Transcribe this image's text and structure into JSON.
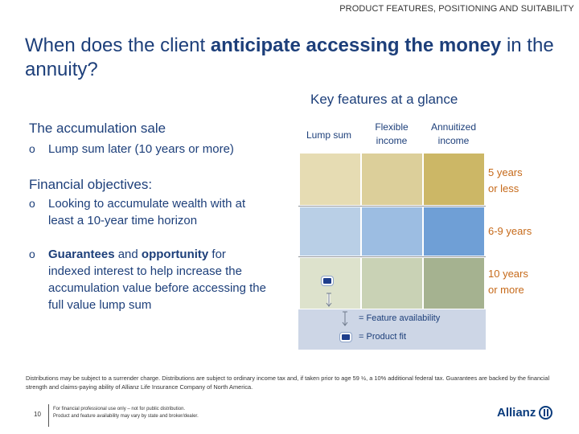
{
  "header": {
    "tag": "PRODUCT FEATURES, POSITIONING AND SUITABILITY"
  },
  "title": {
    "part1": "When does the client ",
    "bold": "anticipate accessing the money",
    "part2": " in the annuity?"
  },
  "left": {
    "section1_heading": "The accumulation sale",
    "section1_bullet": "Lump sum later (10 years or more)",
    "section2_heading": "Financial objectives:",
    "bullet2": "Looking to accumulate wealth with at least a 10-year time horizon",
    "bullet3": {
      "bold1": "Guarantees",
      "text1": " and ",
      "bold2": "opportunity",
      "text2": " for indexed interest to help increase the accumulation value before accessing the full value lump sum"
    },
    "bullet_mark": "o"
  },
  "key_features": {
    "title": "Key features at a glance",
    "columns": [
      "Lump sum",
      "Flexible income",
      "Annuitized income"
    ],
    "column_lines": [
      [
        "Lump sum"
      ],
      [
        "Flexible",
        "income"
      ],
      [
        "Annuitized",
        "income"
      ]
    ],
    "rows": [
      {
        "label_lines": [
          "5 years",
          "or less"
        ],
        "colors": [
          "#e6dcb3",
          "#dccf9a",
          "#ccb766"
        ]
      },
      {
        "label_lines": [
          "6-9 years"
        ],
        "colors": [
          "#b9cfe6",
          "#9cbde2",
          "#6f9fd6"
        ]
      },
      {
        "label_lines": [
          "10 years",
          "or more"
        ],
        "colors": [
          "#dde2cc",
          "#c9d2b5",
          "#a5b290"
        ]
      }
    ],
    "product_fit_cell": "Lump sum / 10 years or more",
    "legend": {
      "availability": "= Feature availability",
      "fit": "= Product fit"
    }
  },
  "footnote": "Distributions may be subject to a surrender charge. Distributions are subject to ordinary income tax and, if taken prior to age 59 ½, a 10% additional federal tax. Guarantees are backed by the financial strength and claims-paying ability of Allianz Life Insurance Company of North America.",
  "footer": {
    "page_number": "10",
    "disclaimer_line1": "For financial professional use only – not for public distribution.",
    "disclaimer_line2": "Product and feature availability may vary by state and broker/dealer.",
    "logo_text": "Allianz"
  }
}
